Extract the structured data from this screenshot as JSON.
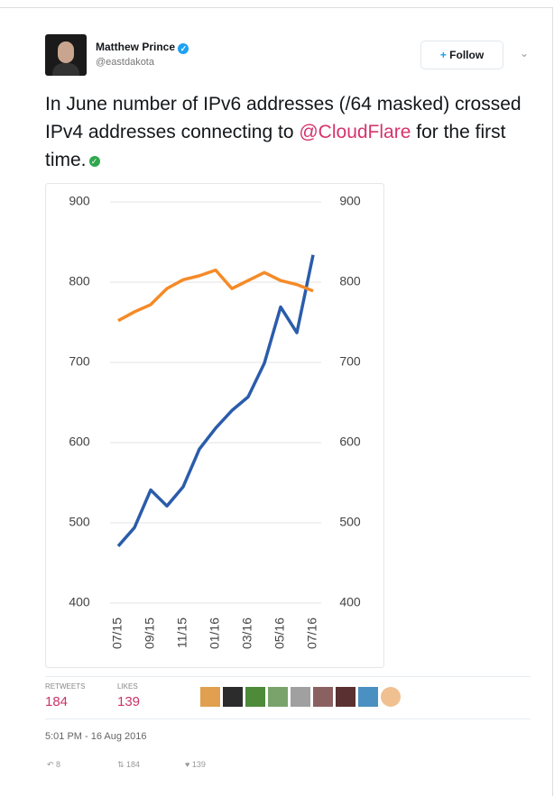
{
  "author": {
    "name": "Matthew Prince",
    "handle": "@eastdakota"
  },
  "follow_button": "Follow",
  "tweet": {
    "text": "In June number of IPv6 addresses (/64 masked) crossed IPv4 addresses connecting to",
    "mention": "@CloudFlare",
    "text_end": "for the first time."
  },
  "chart_data": {
    "type": "line",
    "categories": [
      "07/15",
      null,
      "09/15",
      null,
      "11/15",
      null,
      "01/16",
      null,
      "03/16",
      null,
      "05/16",
      null,
      "07/16"
    ],
    "series": [
      {
        "color": "#2b5cab",
        "values": [
          471,
          494,
          541,
          521,
          545,
          592,
          618,
          640,
          657,
          699,
          769,
          737,
          834
        ]
      },
      {
        "color": "#f58a27",
        "values": [
          752,
          763,
          772,
          792,
          803,
          808,
          815,
          792,
          802,
          812,
          802,
          797,
          789
        ]
      }
    ],
    "ylim": [
      400,
      900
    ],
    "yticks": [
      400,
      500,
      600,
      700,
      800,
      900
    ],
    "y2lim": [
      400,
      900
    ],
    "y2ticks": [
      400,
      500,
      600,
      700,
      800,
      900
    ],
    "grid": true
  },
  "stats": {
    "retweets_label": "RETWEETS",
    "retweets": "184",
    "likes_label": "LIKES",
    "likes": "139"
  },
  "timestamp": "5:01 PM - 16 Aug 2016",
  "actions": {
    "replies": "8",
    "retweets": "184",
    "likes": "139"
  }
}
